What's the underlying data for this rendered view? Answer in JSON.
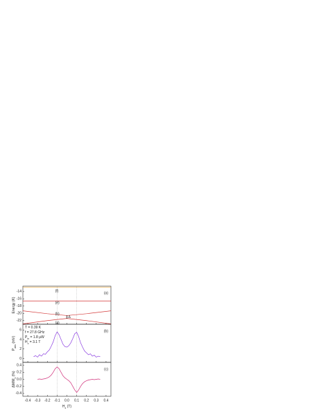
{
  "chart_data": [
    {
      "type": "line",
      "panel_label": "(a)",
      "y_label": [
        {
          "t": "Energy (K)"
        }
      ],
      "xlim": [
        -0.45,
        0.45
      ],
      "ylim": [
        -23,
        -12.5
      ],
      "yticks": [
        -22,
        -20,
        -18,
        -16,
        -14
      ],
      "vlines": [
        -0.1,
        0.1
      ],
      "level_labels": [
        "(f)",
        "(e)",
        "(b)",
        "(a)"
      ],
      "gap_label": "Δ",
      "series": [
        {
          "color": "#e8a33a",
          "x": [
            -0.45,
            0.45
          ],
          "values": [
            -12.8,
            -12.8
          ]
        },
        {
          "color": "#d43a3a",
          "x": [
            -0.45,
            0.45
          ],
          "values": [
            -16.6,
            -16.6
          ]
        },
        {
          "color": "#d43a3a",
          "x": [
            -0.45,
            -0.2,
            0,
            0.2,
            0.45
          ],
          "values": [
            -19.3,
            -20.1,
            -20.6,
            -20.1,
            -19.3
          ]
        },
        {
          "color": "#d43a3a",
          "x": [
            -0.45,
            -0.2,
            0,
            0.2,
            0.45
          ],
          "values": [
            -22.9,
            -22.0,
            -21.4,
            -22.0,
            -22.9
          ]
        }
      ]
    },
    {
      "type": "line",
      "panel_label": "(b)",
      "y_label": [
        {
          "t": "P"
        },
        {
          "t": "abs",
          "sub": true
        },
        {
          "t": " (mV)"
        }
      ],
      "xlim": [
        -0.45,
        0.45
      ],
      "ylim": [
        -0.8,
        7.2
      ],
      "yticks": [
        0,
        2,
        4,
        6
      ],
      "vlines": [
        -0.1,
        0.1
      ],
      "notes": [
        [
          {
            "t": "T = 0.39 K"
          }
        ],
        [
          {
            "t": "f = 27.8 GHz"
          }
        ],
        [
          {
            "t": "P"
          },
          {
            "t": "in",
            "sub": true
          },
          {
            "t": " = 1.8 µW"
          }
        ],
        [
          {
            "t": "H"
          },
          {
            "t": "x",
            "sub": true
          },
          {
            "t": " = 3.1 T"
          }
        ]
      ],
      "series": [
        {
          "color": "#8a3de0",
          "x": [
            -0.34,
            -0.32,
            -0.3,
            -0.28,
            -0.26,
            -0.24,
            -0.22,
            -0.2,
            -0.18,
            -0.16,
            -0.14,
            -0.12,
            -0.1,
            -0.08,
            -0.06,
            -0.04,
            -0.02,
            0.0,
            0.02,
            0.04,
            0.06,
            0.08,
            0.1,
            0.12,
            0.14,
            0.16,
            0.18,
            0.2,
            0.22,
            0.24,
            0.26,
            0.28,
            0.3,
            0.32,
            0.34
          ],
          "values": [
            0.4,
            0.6,
            0.3,
            0.8,
            0.5,
            1.0,
            0.9,
            1.4,
            1.8,
            2.6,
            3.5,
            4.8,
            5.6,
            5.0,
            4.0,
            3.0,
            2.5,
            2.4,
            2.7,
            3.3,
            4.2,
            5.2,
            5.5,
            4.6,
            3.3,
            2.4,
            1.6,
            1.2,
            0.8,
            1.0,
            0.5,
            0.7,
            0.3,
            0.5,
            0.4
          ]
        }
      ]
    },
    {
      "type": "line",
      "panel_label": "(c)",
      "y_label": [
        {
          "t": "ΔM/M"
        },
        {
          "t": "s",
          "sub": true
        },
        {
          "t": " (%)"
        }
      ],
      "x_label": [
        {
          "t": "H"
        },
        {
          "t": "z",
          "sub": true
        },
        {
          "t": " (T)"
        }
      ],
      "xlim": [
        -0.45,
        0.45
      ],
      "ylim": [
        -0.48,
        0.48
      ],
      "xticks": [
        -0.4,
        -0.3,
        -0.2,
        -0.1,
        {
          "value": 0,
          "label": "0.0"
        },
        0.1,
        0.2,
        0.3,
        0.4
      ],
      "yticks": [
        -0.4,
        -0.2,
        {
          "value": 0,
          "label": "0.0"
        },
        0.2,
        0.4
      ],
      "vlines": [
        -0.1,
        0.1
      ],
      "series": [
        {
          "color": "#d0307a",
          "x": [
            -0.3,
            -0.28,
            -0.26,
            -0.24,
            -0.22,
            -0.2,
            -0.18,
            -0.16,
            -0.14,
            -0.12,
            -0.1,
            -0.08,
            -0.06,
            -0.04,
            -0.02,
            0.0,
            0.02,
            0.04,
            0.06,
            0.08,
            0.1,
            0.12,
            0.14,
            0.16,
            0.18,
            0.2,
            0.22,
            0.24,
            0.26,
            0.28,
            0.3,
            0.32,
            0.34
          ],
          "values": [
            0.0,
            0.01,
            0.0,
            0.01,
            0.02,
            0.04,
            0.07,
            0.12,
            0.2,
            0.3,
            0.35,
            0.3,
            0.2,
            0.1,
            0.04,
            0.0,
            -0.04,
            -0.1,
            -0.2,
            -0.3,
            -0.37,
            -0.3,
            -0.2,
            -0.12,
            -0.07,
            -0.04,
            -0.02,
            -0.01,
            0.0,
            -0.01,
            0.0,
            0.01,
            0.0
          ]
        }
      ]
    }
  ]
}
